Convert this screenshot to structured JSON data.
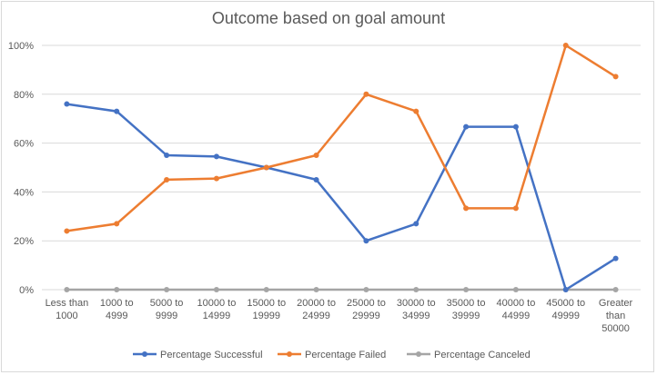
{
  "chart_data": {
    "type": "line",
    "title": "Outcome based on goal amount",
    "categories": [
      [
        "Less than",
        "1000"
      ],
      [
        "1000 to",
        "4999"
      ],
      [
        "5000 to",
        "9999"
      ],
      [
        "10000 to",
        "14999"
      ],
      [
        "15000 to",
        "19999"
      ],
      [
        "20000 to",
        "24999"
      ],
      [
        "25000 to",
        "29999"
      ],
      [
        "30000 to",
        "34999"
      ],
      [
        "35000 to",
        "39999"
      ],
      [
        "40000 to",
        "44999"
      ],
      [
        "45000 to",
        "49999"
      ],
      [
        "Greater",
        "than",
        "50000"
      ]
    ],
    "y_ticks": [
      "0%",
      "20%",
      "40%",
      "60%",
      "80%",
      "100%"
    ],
    "ylim": [
      0,
      100
    ],
    "grid": true,
    "legend_position": "bottom",
    "series": [
      {
        "name": "Percentage Successful",
        "color": "#4472c4",
        "values": [
          76,
          73,
          55,
          54.5,
          50,
          45,
          20,
          27,
          66.7,
          66.7,
          0,
          12.8
        ]
      },
      {
        "name": "Percentage Failed",
        "color": "#ed7d31",
        "values": [
          24,
          27,
          45,
          45.5,
          50,
          55,
          80,
          73,
          33.3,
          33.3,
          100,
          87.2
        ]
      },
      {
        "name": "Percentage Canceled",
        "color": "#a5a5a5",
        "values": [
          0,
          0,
          0,
          0,
          0,
          0,
          0,
          0,
          0,
          0,
          0,
          0
        ]
      }
    ]
  }
}
